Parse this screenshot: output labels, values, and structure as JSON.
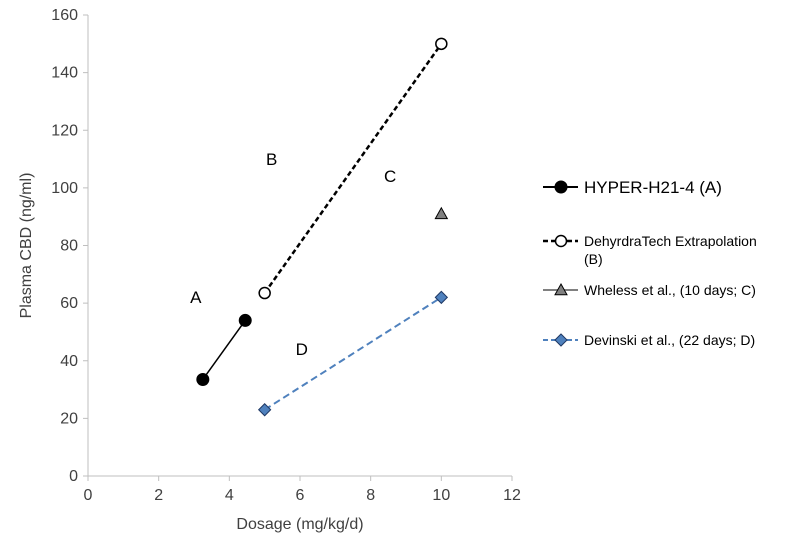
{
  "chart_data": {
    "type": "scatter",
    "xlabel": "Dosage (mg/kg/d)",
    "ylabel": "Plasma CBD (ng/ml)",
    "xlim": [
      0,
      12
    ],
    "ylim": [
      0,
      160
    ],
    "xticks": [
      0,
      2,
      4,
      6,
      8,
      10,
      12
    ],
    "yticks": [
      0,
      20,
      40,
      60,
      80,
      100,
      120,
      140,
      160
    ],
    "grid": false,
    "legend_position": "right",
    "series": [
      {
        "name": "HYPER-H21-4 (A)",
        "marker": "circle-filled",
        "line": "solid",
        "color": "#000000",
        "points": [
          {
            "x": 3.25,
            "y": 33.5
          },
          {
            "x": 4.45,
            "y": 54
          }
        ]
      },
      {
        "name": "DehyrdraTech Extrapolation (B)",
        "marker": "circle-open",
        "line": "dashed",
        "color": "#000000",
        "points": [
          {
            "x": 5.0,
            "y": 63.5
          },
          {
            "x": 10.0,
            "y": 150
          }
        ]
      },
      {
        "name": "Wheless et al., (10 days; C)",
        "marker": "triangle",
        "line": "solid",
        "color": "#808080",
        "points": [
          {
            "x": 10.0,
            "y": 91
          }
        ]
      },
      {
        "name": "Devinski et al., (22 days; D)",
        "marker": "diamond",
        "line": "dashed",
        "color": "#4f81bd",
        "points": [
          {
            "x": 5.0,
            "y": 23
          },
          {
            "x": 10.0,
            "y": 62
          }
        ]
      }
    ],
    "legend": [
      {
        "lines": [
          "HYPER-H21-4 (A)"
        ]
      },
      {
        "lines": [
          "DehyrdraTech Extrapolation",
          "(B)"
        ]
      },
      {
        "lines": [
          "Wheless et al., (10 days; C)"
        ]
      },
      {
        "lines": [
          "Devinski et al., (22 days; D)"
        ]
      }
    ],
    "annotations": [
      {
        "text": "A",
        "x": 3.05,
        "y": 60
      },
      {
        "text": "B",
        "x": 5.2,
        "y": 108
      },
      {
        "text": "C",
        "x": 8.55,
        "y": 102
      },
      {
        "text": "D",
        "x": 6.05,
        "y": 42
      }
    ]
  }
}
